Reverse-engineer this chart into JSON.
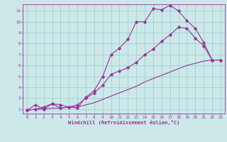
{
  "xlabel": "Windchill (Refroidissement éolien,°C)",
  "background_color": "#cce8e8",
  "line_color": "#993399",
  "grid_color": "#99cccc",
  "xlim": [
    -0.5,
    23.5
  ],
  "ylim": [
    1.6,
    11.6
  ],
  "xticks": [
    0,
    1,
    2,
    3,
    4,
    5,
    6,
    7,
    8,
    9,
    10,
    11,
    12,
    13,
    14,
    15,
    16,
    17,
    18,
    19,
    20,
    21,
    22,
    23
  ],
  "yticks": [
    2,
    3,
    4,
    5,
    6,
    7,
    8,
    9,
    10,
    11
  ],
  "line1_x": [
    0,
    1,
    2,
    3,
    4,
    5,
    6,
    7,
    8,
    9,
    10,
    11,
    12,
    13,
    14,
    15,
    16,
    17,
    18,
    19,
    20,
    21,
    22,
    23
  ],
  "line1_y": [
    1.9,
    2.4,
    2.0,
    2.5,
    2.1,
    2.2,
    2.1,
    3.1,
    3.7,
    5.0,
    7.0,
    7.6,
    8.4,
    10.0,
    10.0,
    11.2,
    11.1,
    11.5,
    11.0,
    10.1,
    9.4,
    8.1,
    6.5,
    6.5
  ],
  "line2_x": [
    0,
    1,
    2,
    3,
    4,
    5,
    6,
    7,
    8,
    9,
    10,
    11,
    12,
    13,
    14,
    15,
    16,
    17,
    18,
    19,
    20,
    21,
    22,
    23
  ],
  "line2_y": [
    1.9,
    2.0,
    2.2,
    2.5,
    2.4,
    2.2,
    2.4,
    3.0,
    3.5,
    4.2,
    5.2,
    5.5,
    5.8,
    6.3,
    7.0,
    7.5,
    8.2,
    8.8,
    9.5,
    9.4,
    8.5,
    7.8,
    6.5,
    6.5
  ],
  "line3_x": [
    0,
    1,
    2,
    3,
    4,
    5,
    6,
    7,
    8,
    9,
    10,
    11,
    12,
    13,
    14,
    15,
    16,
    17,
    18,
    19,
    20,
    21,
    22,
    23
  ],
  "line3_y": [
    1.9,
    2.0,
    2.0,
    2.1,
    2.1,
    2.2,
    2.2,
    2.4,
    2.6,
    2.9,
    3.2,
    3.5,
    3.8,
    4.1,
    4.5,
    4.8,
    5.1,
    5.4,
    5.7,
    6.0,
    6.2,
    6.4,
    6.5,
    6.5
  ]
}
